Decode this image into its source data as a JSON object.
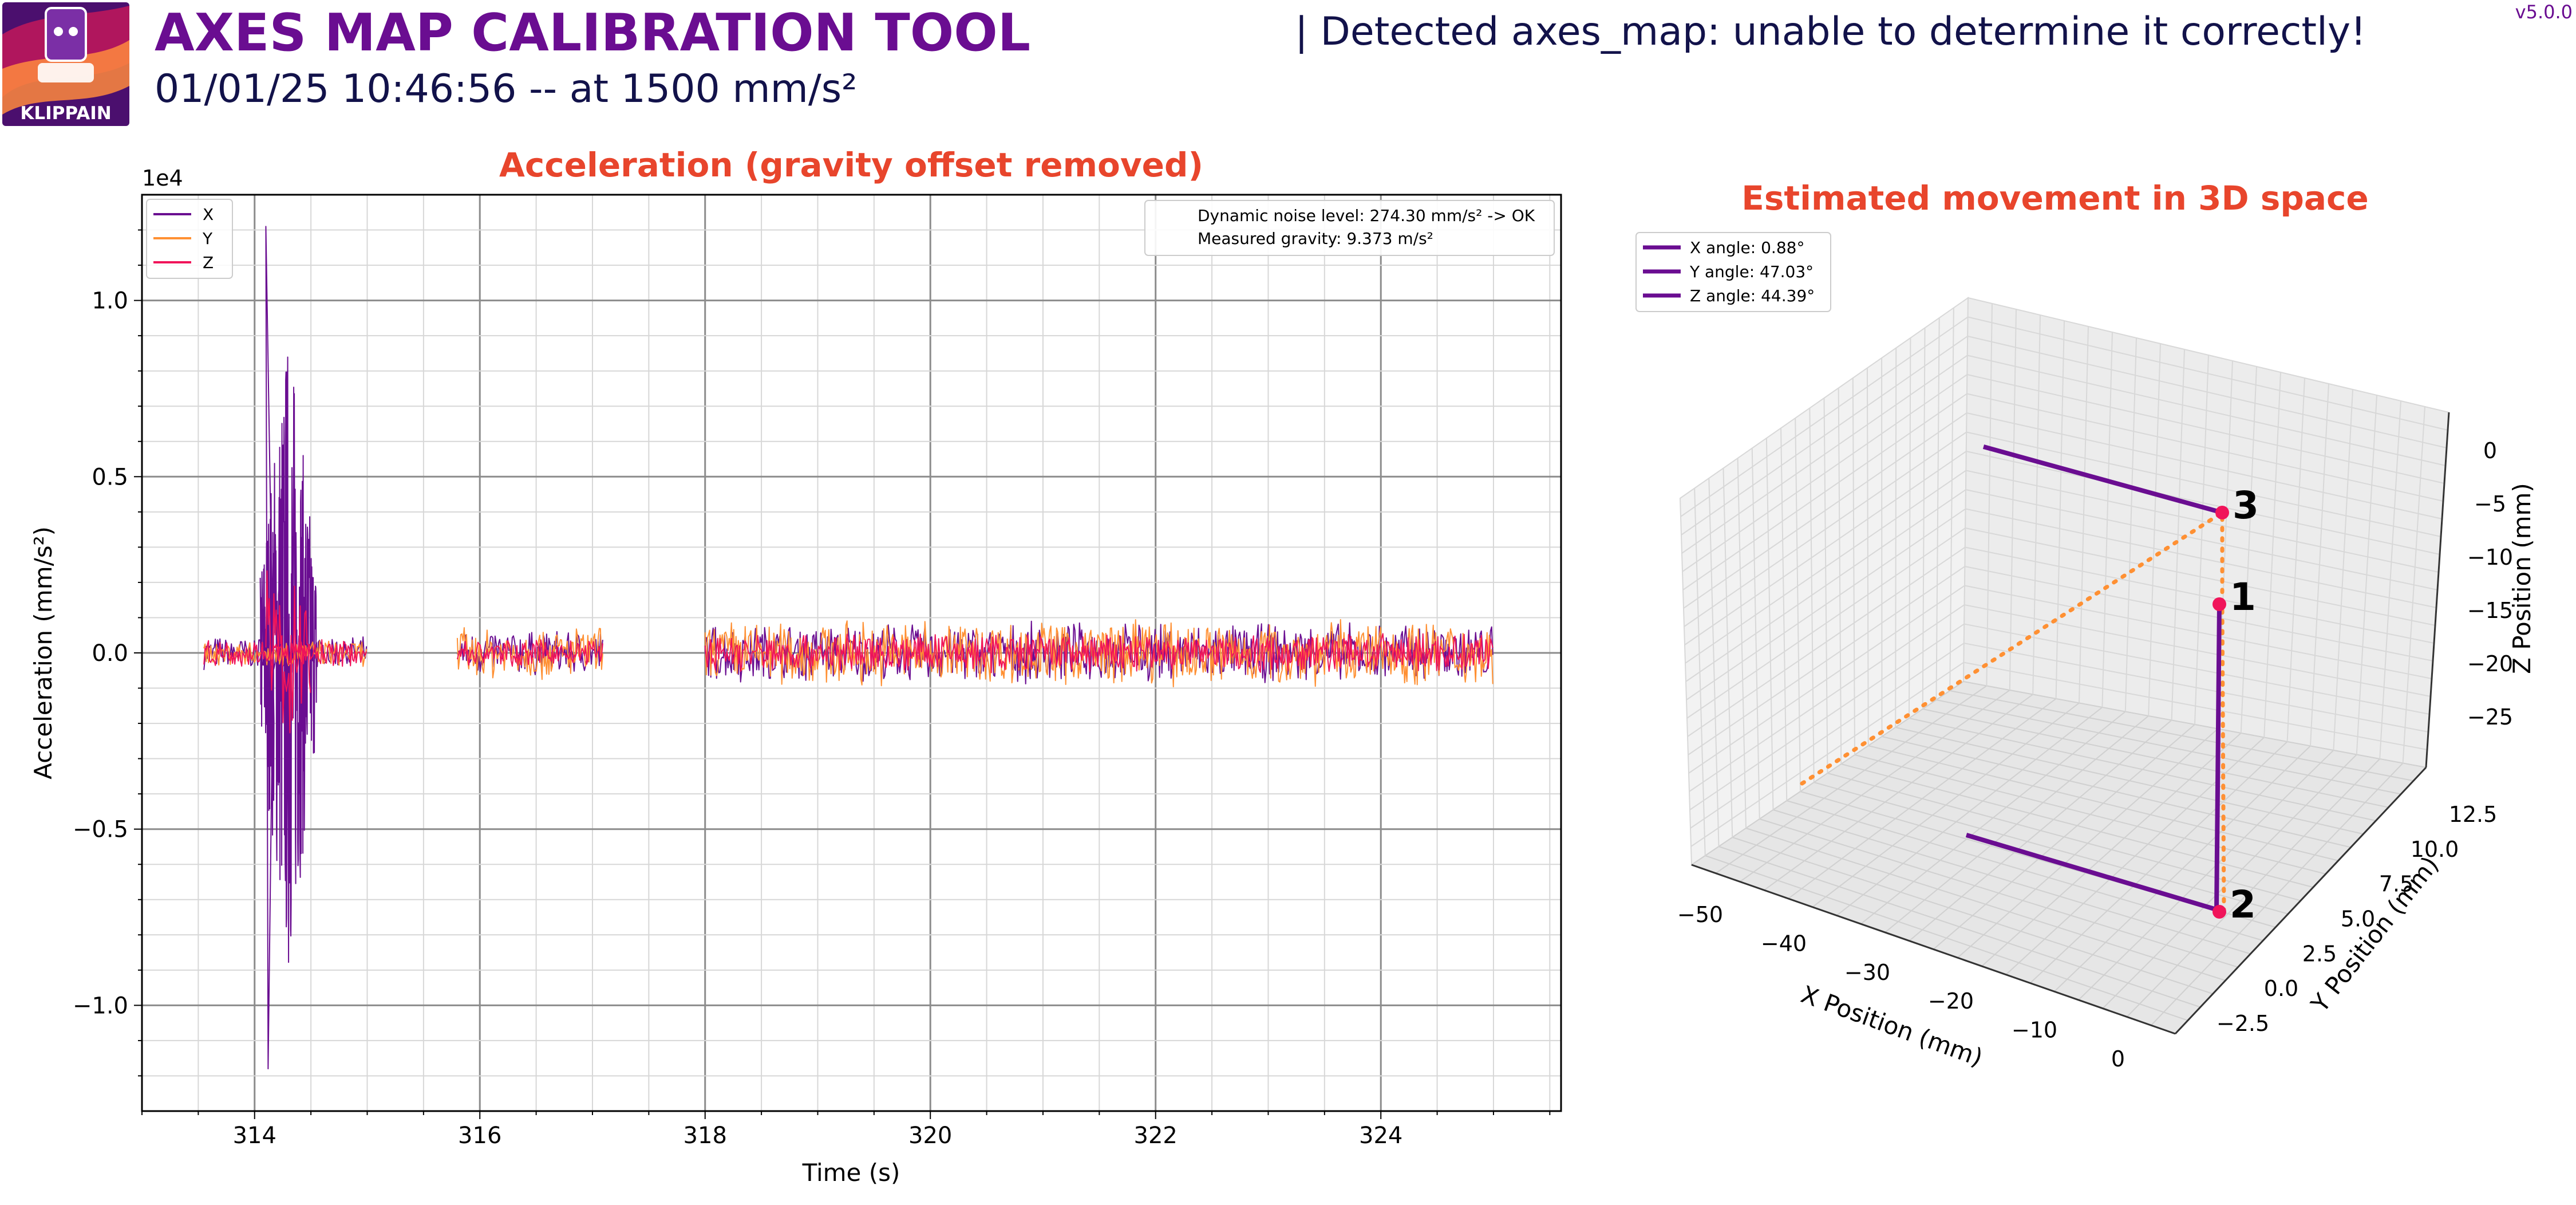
{
  "header": {
    "logo_text": "KLIPPAIN",
    "title": "AXES MAP CALIBRATION TOOL",
    "subtitle": "01/01/25 10:46:56 -- at 1500 mm/s²",
    "detection": "| Detected axes_map: unable to determine it correctly!",
    "version": "v5.0.0"
  },
  "colors": {
    "purple": "#6a0d91",
    "orange": "#ff9033",
    "pink": "#f0145a",
    "title_red": "#e8452c",
    "header_dark": "#12124a"
  },
  "chart_data": [
    {
      "type": "line",
      "title": "Acceleration (gravity offset removed)",
      "xlabel": "Time (s)",
      "ylabel": "Acceleration (mm/s²)",
      "y_scale_label": "1e4",
      "xlim": [
        313.0,
        325.6
      ],
      "ylim": [
        -1.3,
        1.3
      ],
      "x_ticks": [
        314,
        316,
        318,
        320,
        322,
        324
      ],
      "x_tick_labels": [
        "314",
        "316",
        "318",
        "320",
        "322",
        "324"
      ],
      "y_ticks": [
        -1.0,
        -0.5,
        0.0,
        0.5,
        1.0
      ],
      "y_tick_labels": [
        "−1.0",
        "−0.5",
        "0.0",
        "0.5",
        "1.0"
      ],
      "grid": true,
      "legend_position": "top-left",
      "series": [
        {
          "name": "X",
          "color": "#6a0d91",
          "segments": [
            {
              "x_start": 313.55,
              "x_end": 315.0,
              "noise_amplitude": 0.05
            },
            {
              "x_start": 314.05,
              "x_end": 314.55,
              "noise_amplitude": 0.72,
              "peak_max": 1.21,
              "peak_min": -1.18
            },
            {
              "x_start": 315.8,
              "x_end": 317.1,
              "noise_amplitude": 0.07
            },
            {
              "x_start": 318.0,
              "x_end": 325.0,
              "noise_amplitude": 0.09
            }
          ]
        },
        {
          "name": "Y",
          "color": "#ff9033",
          "segments": [
            {
              "x_start": 313.55,
              "x_end": 315.0,
              "noise_amplitude": 0.04
            },
            {
              "x_start": 315.8,
              "x_end": 317.1,
              "noise_amplitude": 0.08
            },
            {
              "x_start": 318.0,
              "x_end": 325.0,
              "noise_amplitude": 0.1
            }
          ]
        },
        {
          "name": "Z",
          "color": "#f0145a",
          "segments": [
            {
              "x_start": 313.55,
              "x_end": 315.0,
              "noise_amplitude": 0.04
            },
            {
              "x_start": 314.1,
              "x_end": 314.5,
              "noise_amplitude": 0.25
            },
            {
              "x_start": 315.8,
              "x_end": 317.1,
              "noise_amplitude": 0.04
            },
            {
              "x_start": 318.0,
              "x_end": 325.0,
              "noise_amplitude": 0.06
            }
          ]
        }
      ],
      "annotations": [
        "Dynamic noise level: 274.30 mm/s² -> OK",
        "Measured gravity: 9.373 m/s²"
      ]
    },
    {
      "type": "line3d",
      "title": "Estimated movement in 3D space",
      "xlabel": "X Position (mm)",
      "ylabel": "Y Position (mm)",
      "zlabel": "Z Position (mm)",
      "x_tick_labels": [
        "−50",
        "−40",
        "−30",
        "−20",
        "−10",
        "0"
      ],
      "y_tick_labels": [
        "−2.5",
        "0.0",
        "2.5",
        "5.0",
        "7.5",
        "10.0",
        "12.5"
      ],
      "z_tick_labels": [
        "0",
        "−5",
        "−10",
        "−15",
        "−20",
        "−25"
      ],
      "legend_position": "top-left",
      "legend": [
        "X angle: 0.88°",
        "Y angle: 47.03°",
        "Z angle: 44.39°"
      ],
      "points": [
        {
          "label": "1",
          "x": 0.0,
          "y": 0.0,
          "z": -15.0
        },
        {
          "label": "2",
          "x": 0.0,
          "y": 0.0,
          "z": -30.0
        },
        {
          "label": "3",
          "x": 0.0,
          "y": 11.5,
          "z": -3.5
        }
      ]
    }
  ]
}
